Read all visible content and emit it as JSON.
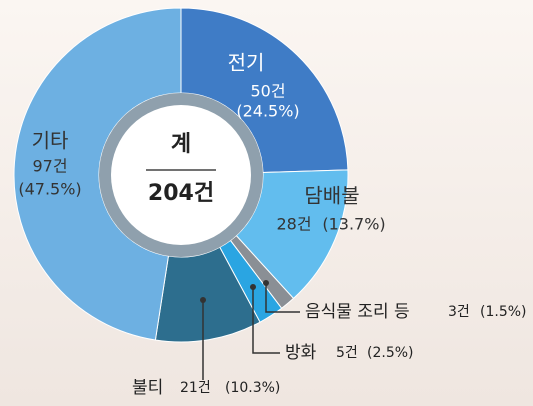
{
  "chart_data": {
    "type": "donut",
    "categories": [
      "전기",
      "담배불",
      "음식물 조리 등",
      "방화",
      "불티",
      "기타"
    ],
    "values": [
      50,
      28,
      3,
      5,
      21,
      97
    ],
    "value_labels": [
      "50건",
      "28건",
      "3건",
      "5건",
      "21건",
      "97건"
    ],
    "shares": [
      24.5,
      13.7,
      1.5,
      2.5,
      10.3,
      47.5
    ],
    "share_labels": [
      "(24.5%)",
      "(13.7%)",
      "(1.5%)",
      "(2.5%)",
      "(10.3%)",
      "(47.5%)"
    ],
    "colors": [
      "#3f7cc6",
      "#62bdee",
      "#8a8f95",
      "#2aa5e2",
      "#2d6e8e",
      "#6db0e2"
    ],
    "total_label": "계",
    "total": {
      "value": 204,
      "label": "204건"
    }
  }
}
